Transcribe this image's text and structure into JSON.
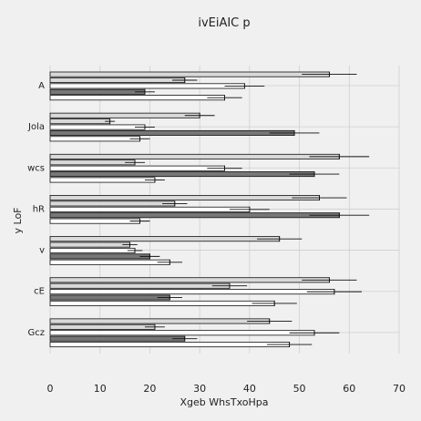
{
  "chart_data": {
    "type": "bar",
    "orientation": "horizontal",
    "title": "ivEiAIC  p",
    "xlabel": "Xgeb WhsTxoHpa",
    "ylabel": "y LoF",
    "xlim": [
      0,
      70
    ],
    "xticks": [
      0,
      10,
      20,
      30,
      40,
      50,
      60,
      70
    ],
    "grid": true,
    "categories": [
      "A",
      "Jola",
      "wcs",
      "hR",
      "v",
      "cE",
      "Gcz"
    ],
    "series": [
      {
        "color": "#d9d9d9",
        "values": [
          56,
          30,
          58,
          54,
          46,
          56,
          44
        ],
        "errors": [
          5.5,
          3,
          6,
          5.5,
          4.5,
          5.5,
          4.5
        ]
      },
      {
        "color": "#d9d9d9",
        "values": [
          27,
          12,
          17,
          25,
          16,
          36,
          21
        ],
        "errors": [
          2.5,
          1,
          2,
          2.5,
          1.5,
          3.5,
          2
        ]
      },
      {
        "color": "#ffffff",
        "values": [
          39,
          19,
          35,
          40,
          17,
          57,
          53
        ],
        "errors": [
          4,
          2,
          3.5,
          4,
          1.5,
          5.5,
          5
        ]
      },
      {
        "color": "#777777",
        "values": [
          19,
          49,
          53,
          58,
          20,
          24,
          27
        ],
        "errors": [
          2,
          5,
          5,
          6,
          2,
          2.5,
          2.5
        ]
      },
      {
        "color": "#ffffff",
        "values": [
          35,
          18,
          21,
          18,
          24,
          45,
          48
        ],
        "errors": [
          3.5,
          2,
          2,
          2,
          2.5,
          4.5,
          4.5
        ]
      }
    ]
  }
}
